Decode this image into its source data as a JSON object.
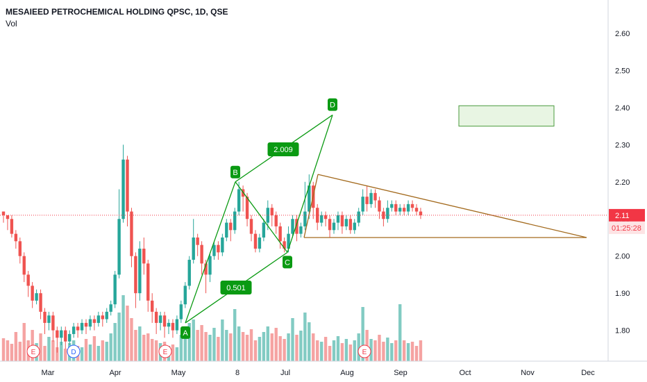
{
  "header": {
    "title": "MESAIEED PETROCHEMICAL HOLDING QPSC, 1D, QSE",
    "volume_label": "Vol"
  },
  "chart_data": {
    "type": "candlestick",
    "symbol": "MESAIEED PETROCHEMICAL HOLDING QPSC",
    "interval": "1D",
    "exchange": "QSE",
    "y_ticks": [
      "2.60",
      "2.50",
      "2.40",
      "2.30",
      "2.20",
      "2.10",
      "2.00",
      "1.90",
      "1.80"
    ],
    "y_range": [
      1.73,
      2.67
    ],
    "x_ticks": [
      "Mar",
      "Apr",
      "May",
      "8",
      "Jul",
      "Aug",
      "Sep",
      "Oct",
      "Nov",
      "Dec"
    ],
    "last_price": "2.11",
    "countdown": "01:25:28",
    "candles": [
      [
        2.12,
        2.11,
        2.09,
        2.12
      ],
      [
        2.11,
        2.1,
        2.07,
        2.11
      ],
      [
        2.1,
        2.06,
        2.05,
        2.11
      ],
      [
        2.06,
        2.04,
        2.02,
        2.07
      ],
      [
        2.04,
        2.0,
        1.98,
        2.05
      ],
      [
        2.0,
        1.95,
        1.93,
        2.01
      ],
      [
        1.95,
        1.92,
        1.89,
        1.96
      ],
      [
        1.92,
        1.88,
        1.86,
        1.93
      ],
      [
        1.88,
        1.9,
        1.87,
        1.91
      ],
      [
        1.9,
        1.85,
        1.83,
        1.91
      ],
      [
        1.85,
        1.82,
        1.79,
        1.86
      ],
      [
        1.82,
        1.84,
        1.8,
        1.85
      ],
      [
        1.84,
        1.8,
        1.77,
        1.85
      ],
      [
        1.8,
        1.78,
        1.74,
        1.81
      ],
      [
        1.78,
        1.8,
        1.76,
        1.81
      ],
      [
        1.8,
        1.77,
        1.75,
        1.81
      ],
      [
        1.77,
        1.79,
        1.76,
        1.8
      ],
      [
        1.79,
        1.81,
        1.78,
        1.82
      ],
      [
        1.81,
        1.8,
        1.78,
        1.82
      ],
      [
        1.8,
        1.82,
        1.79,
        1.83
      ],
      [
        1.82,
        1.81,
        1.79,
        1.83
      ],
      [
        1.81,
        1.83,
        1.8,
        1.84
      ],
      [
        1.83,
        1.82,
        1.8,
        1.84
      ],
      [
        1.82,
        1.84,
        1.81,
        1.85
      ],
      [
        1.84,
        1.83,
        1.81,
        1.85
      ],
      [
        1.83,
        1.85,
        1.82,
        1.86
      ],
      [
        1.85,
        1.87,
        1.84,
        1.88
      ],
      [
        1.87,
        1.95,
        1.86,
        1.96
      ],
      [
        1.95,
        2.1,
        1.94,
        2.18
      ],
      [
        2.1,
        2.26,
        2.09,
        2.3
      ],
      [
        2.26,
        2.12,
        2.08,
        2.27
      ],
      [
        2.12,
        2.0,
        1.97,
        2.13
      ],
      [
        2.0,
        1.9,
        1.86,
        2.01
      ],
      [
        1.9,
        2.02,
        1.88,
        2.04
      ],
      [
        2.02,
        1.98,
        1.95,
        2.05
      ],
      [
        1.98,
        1.88,
        1.85,
        1.99
      ],
      [
        1.88,
        1.85,
        1.82,
        1.9
      ],
      [
        1.85,
        1.82,
        1.79,
        1.86
      ],
      [
        1.82,
        1.84,
        1.8,
        1.85
      ],
      [
        1.84,
        1.81,
        1.78,
        1.85
      ],
      [
        1.81,
        1.82,
        1.79,
        1.83
      ],
      [
        1.82,
        1.8,
        1.78,
        1.83
      ],
      [
        1.8,
        1.83,
        1.79,
        1.84
      ],
      [
        1.83,
        1.87,
        1.82,
        1.88
      ],
      [
        1.87,
        1.92,
        1.86,
        1.93
      ],
      [
        1.92,
        1.99,
        1.91,
        2.0
      ],
      [
        1.99,
        2.05,
        1.98,
        2.1
      ],
      [
        2.05,
        2.03,
        2.0,
        2.06
      ],
      [
        2.03,
        1.98,
        1.95,
        2.04
      ],
      [
        1.98,
        1.95,
        1.9,
        1.99
      ],
      [
        1.95,
        2.0,
        1.93,
        2.01
      ],
      [
        2.0,
        2.03,
        1.99,
        2.04
      ],
      [
        2.03,
        2.01,
        1.99,
        2.04
      ],
      [
        2.01,
        2.05,
        2.0,
        2.06
      ],
      [
        2.05,
        2.09,
        2.04,
        2.1
      ],
      [
        2.09,
        2.07,
        2.04,
        2.1
      ],
      [
        2.07,
        2.12,
        2.06,
        2.13
      ],
      [
        2.12,
        2.18,
        2.11,
        2.2
      ],
      [
        2.18,
        2.16,
        2.12,
        2.19
      ],
      [
        2.16,
        2.1,
        2.08,
        2.17
      ],
      [
        2.1,
        2.06,
        2.04,
        2.11
      ],
      [
        2.06,
        2.02,
        2.01,
        2.07
      ],
      [
        2.02,
        2.05,
        2.01,
        2.06
      ],
      [
        2.05,
        2.09,
        2.04,
        2.1
      ],
      [
        2.09,
        2.13,
        2.07,
        2.15
      ],
      [
        2.13,
        2.11,
        2.08,
        2.14
      ],
      [
        2.11,
        2.08,
        2.06,
        2.12
      ],
      [
        2.08,
        2.04,
        2.02,
        2.09
      ],
      [
        2.04,
        2.02,
        2.01,
        2.05
      ],
      [
        2.02,
        2.06,
        2.01,
        2.08
      ],
      [
        2.06,
        2.1,
        2.05,
        2.11
      ],
      [
        2.1,
        2.06,
        2.04,
        2.11
      ],
      [
        2.06,
        2.08,
        2.05,
        2.09
      ],
      [
        2.08,
        2.12,
        2.07,
        2.2
      ],
      [
        2.12,
        2.19,
        2.1,
        2.22
      ],
      [
        2.19,
        2.13,
        2.1,
        2.2
      ],
      [
        2.13,
        2.09,
        2.07,
        2.14
      ],
      [
        2.09,
        2.11,
        2.08,
        2.12
      ],
      [
        2.11,
        2.1,
        2.08,
        2.12
      ],
      [
        2.1,
        2.07,
        2.05,
        2.11
      ],
      [
        2.07,
        2.09,
        2.06,
        2.1
      ],
      [
        2.09,
        2.11,
        2.07,
        2.12
      ],
      [
        2.11,
        2.08,
        2.06,
        2.12
      ],
      [
        2.08,
        2.1,
        2.07,
        2.11
      ],
      [
        2.1,
        2.07,
        2.06,
        2.11
      ],
      [
        2.07,
        2.09,
        2.06,
        2.1
      ],
      [
        2.09,
        2.12,
        2.08,
        2.13
      ],
      [
        2.12,
        2.16,
        2.11,
        2.18
      ],
      [
        2.16,
        2.14,
        2.12,
        2.19
      ],
      [
        2.14,
        2.17,
        2.13,
        2.18
      ],
      [
        2.17,
        2.15,
        2.13,
        2.18
      ],
      [
        2.15,
        2.12,
        2.1,
        2.16
      ],
      [
        2.12,
        2.1,
        2.08,
        2.13
      ],
      [
        2.1,
        2.13,
        2.09,
        2.15
      ],
      [
        2.13,
        2.14,
        2.12,
        2.15
      ],
      [
        2.14,
        2.12,
        2.11,
        2.15
      ],
      [
        2.12,
        2.13,
        2.11,
        2.14
      ],
      [
        2.13,
        2.12,
        2.11,
        2.14
      ],
      [
        2.12,
        2.14,
        2.11,
        2.15
      ],
      [
        2.14,
        2.13,
        2.12,
        2.15
      ],
      [
        2.13,
        2.12,
        2.11,
        2.14
      ],
      [
        2.12,
        2.11,
        2.1,
        2.13
      ]
    ],
    "volumes": [
      0.33,
      0.3,
      0.25,
      0.42,
      0.28,
      0.55,
      0.3,
      0.45,
      0.26,
      0.4,
      0.22,
      0.35,
      0.3,
      0.2,
      0.28,
      0.18,
      0.26,
      0.3,
      0.22,
      0.2,
      0.32,
      0.24,
      0.36,
      0.22,
      0.3,
      0.28,
      0.4,
      0.55,
      0.7,
      0.95,
      0.8,
      0.62,
      0.45,
      0.5,
      0.38,
      0.4,
      0.32,
      0.3,
      0.26,
      0.28,
      0.22,
      0.24,
      0.2,
      0.38,
      0.48,
      0.55,
      0.6,
      0.45,
      0.52,
      0.42,
      0.38,
      0.48,
      0.35,
      0.6,
      0.45,
      0.4,
      0.75,
      0.5,
      0.42,
      0.38,
      0.46,
      0.3,
      0.35,
      0.42,
      0.5,
      0.4,
      0.48,
      0.36,
      0.32,
      0.4,
      0.62,
      0.38,
      0.44,
      0.7,
      0.56,
      0.4,
      0.3,
      0.28,
      0.35,
      0.22,
      0.3,
      0.36,
      0.26,
      0.32,
      0.24,
      0.3,
      0.4,
      0.78,
      0.45,
      0.32,
      0.3,
      0.38,
      0.28,
      0.34,
      0.26,
      0.3,
      0.82,
      0.3,
      0.26,
      0.28,
      0.22,
      0.3
    ],
    "earnings_markers": [
      {
        "label": "E",
        "color": "#f23645"
      },
      {
        "label": "D",
        "color": "#2962ff"
      },
      {
        "label": "E",
        "color": "#f23645"
      },
      {
        "label": "E",
        "color": "#f23645"
      }
    ],
    "pattern": {
      "points": [
        {
          "label": "A",
          "price": 1.82
        },
        {
          "label": "B",
          "price": 2.2
        },
        {
          "label": "C",
          "price": 2.01
        },
        {
          "label": "D",
          "price": 2.38
        }
      ],
      "ratios": [
        "2.009",
        "0.501"
      ]
    },
    "triangle": {
      "upper_start": 2.22,
      "upper_end": 2.05,
      "lower": 2.05
    },
    "target_zone": {
      "low": 2.35,
      "high": 2.405
    },
    "colors": {
      "up": "#26a69a",
      "down": "#ef5350",
      "up_vol": "#82cbc3",
      "down_vol": "#f5a3a2",
      "pattern": "#0a9a12",
      "triangle": "#a36a1d",
      "zone_fill": "#e8f5e3",
      "zone_border": "#4a9a3c",
      "price_line": "#f23645"
    }
  }
}
